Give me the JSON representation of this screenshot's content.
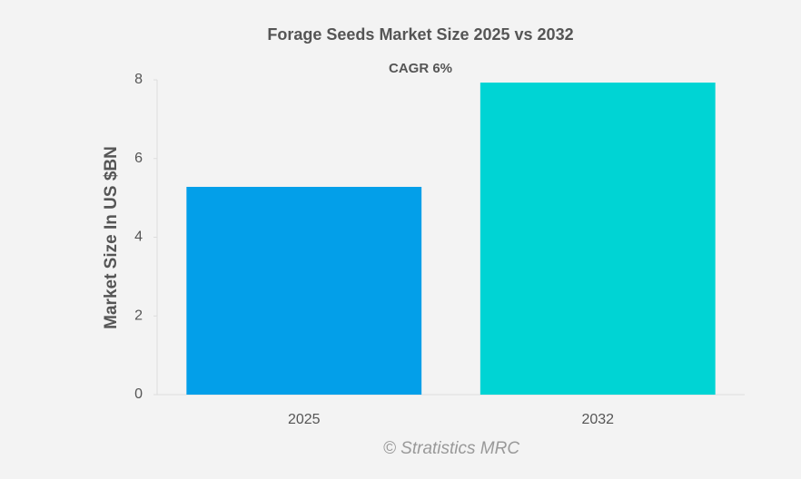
{
  "chart_data": {
    "type": "bar",
    "title": "Forage Seeds Market Size 2025 vs 2032",
    "annotation": "CAGR 6%",
    "ylabel": "Market Size In US $BN",
    "watermark": "© Stratistics MRC",
    "categories": [
      "2025",
      "2032"
    ],
    "values": [
      5.28,
      7.93
    ],
    "colors": [
      "#039fe9",
      "#00d4d4"
    ],
    "ylim": [
      0,
      8
    ],
    "yticks": [
      0,
      2,
      4,
      6,
      8
    ]
  }
}
